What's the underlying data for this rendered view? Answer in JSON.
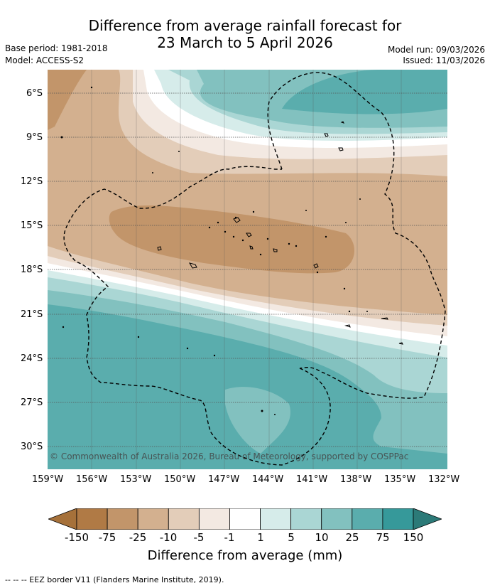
{
  "title": {
    "line1": "Difference from average rainfall forecast for",
    "line2": "23 March to 5 April 2026"
  },
  "meta": {
    "base_period": "Base period: 1981-2018",
    "model": "Model: ACCESS-S2",
    "model_run": "Model run: 09/03/2026",
    "issued": "Issued: 11/03/2026"
  },
  "map": {
    "copyright": "© Commonwealth of Australia 2026, Bureau of Meteorology, supported by COSPPac",
    "lat_labels": [
      "6°S",
      "9°S",
      "12°S",
      "15°S",
      "18°S",
      "21°S",
      "24°S",
      "27°S",
      "30°S"
    ],
    "lon_labels": [
      "159°W",
      "156°W",
      "153°W",
      "150°W",
      "147°W",
      "144°W",
      "141°W",
      "138°W",
      "135°W",
      "132°W"
    ]
  },
  "colorbar": {
    "ticks": [
      "-150",
      "-75",
      "-25",
      "-10",
      "-5",
      "-1",
      "1",
      "5",
      "10",
      "25",
      "75",
      "150"
    ],
    "colors": [
      "#a6713a",
      "#b07a45",
      "#c2956a",
      "#d3b08f",
      "#e3cdb9",
      "#f3e9e2",
      "#ffffff",
      "#d6ecea",
      "#aad6d4",
      "#82c1bf",
      "#5aadad",
      "#36999a",
      "#2c7a78"
    ],
    "label": "Difference from average (mm)"
  },
  "footer": "--  --  -- EEZ border V11 (Flanders Marine Institute, 2019)."
}
